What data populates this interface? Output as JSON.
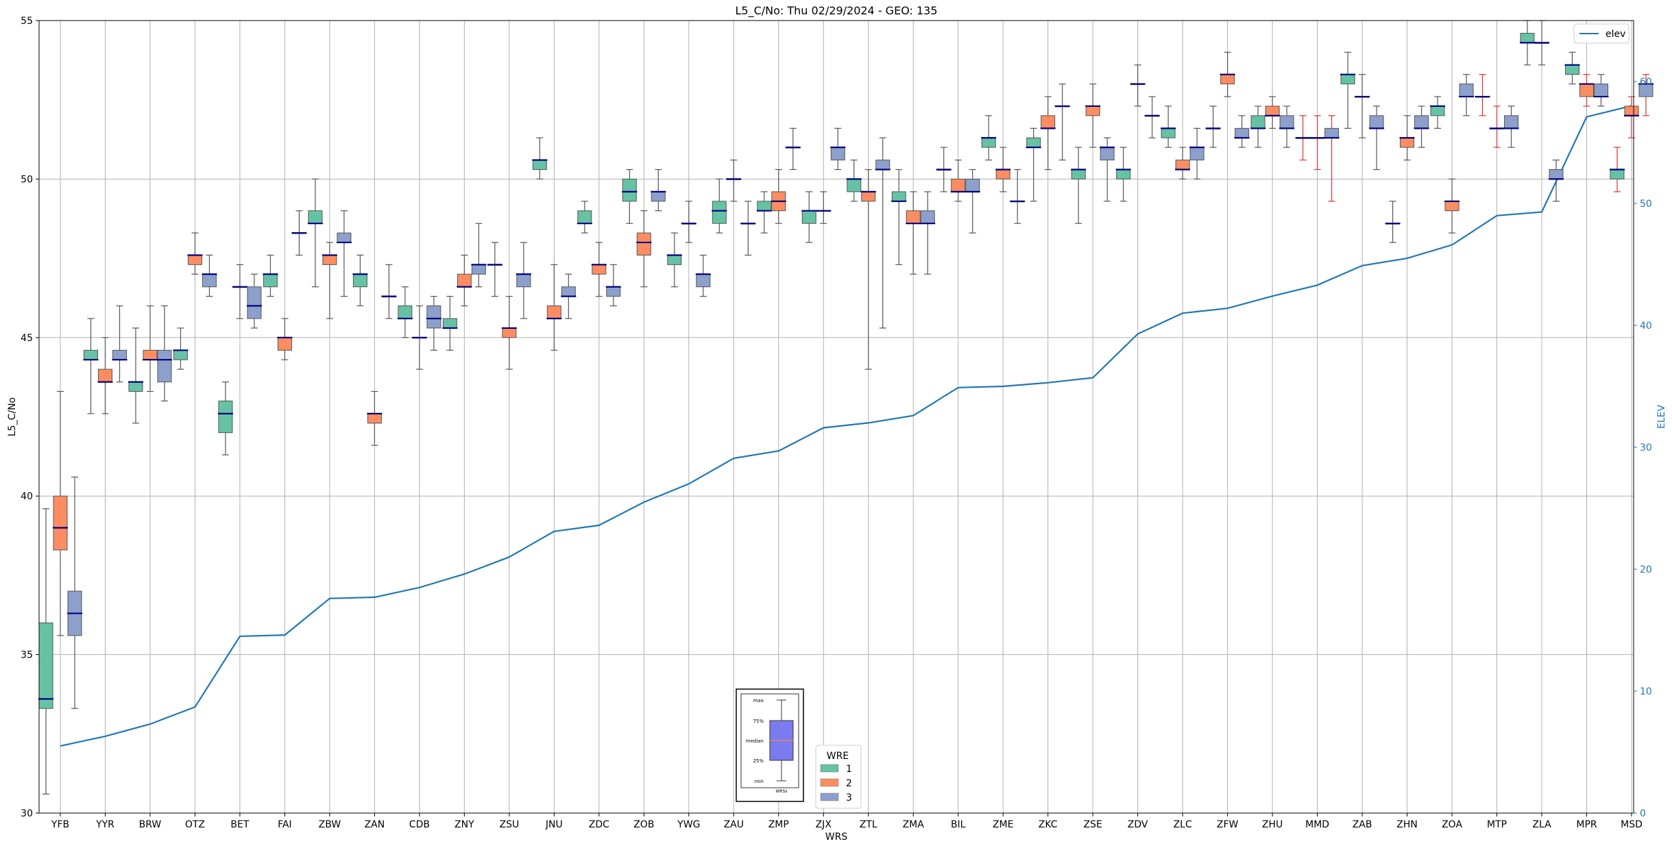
{
  "chart_data": {
    "type": "box",
    "title": "L5_C/No: Thu 02/29/2024 - GEO: 135",
    "xlabel": "WRS",
    "ylabel": "L5_C/No",
    "y2label": "ELEV",
    "ylim": [
      30,
      55
    ],
    "y2lim": [
      0,
      65
    ],
    "yticks": [
      30,
      35,
      40,
      45,
      50,
      55
    ],
    "y2ticks": [
      0,
      10,
      20,
      30,
      40,
      50,
      60
    ],
    "grid": true,
    "categories": [
      "YFB",
      "YYR",
      "BRW",
      "OTZ",
      "BET",
      "FAI",
      "ZBW",
      "ZAN",
      "CDB",
      "ZNY",
      "ZSU",
      "JNU",
      "ZDC",
      "ZOB",
      "YWG",
      "ZAU",
      "ZMP",
      "ZJX",
      "ZTL",
      "ZMA",
      "BIL",
      "ZME",
      "ZKC",
      "ZSE",
      "ZDV",
      "ZLC",
      "ZFW",
      "ZHU",
      "MMD",
      "ZAB",
      "ZHN",
      "ZOA",
      "MTP",
      "ZLA",
      "MPR",
      "MSD"
    ],
    "wre_colors": {
      "1": "#66c2a5",
      "2": "#fc8d62",
      "3": "#8da0cb"
    },
    "boxes": [
      {
        "cat": "YFB",
        "wre": 1,
        "min": 30.6,
        "q1": 33.3,
        "med": 33.6,
        "q3": 36.0,
        "max": 39.6
      },
      {
        "cat": "YFB",
        "wre": 2,
        "min": 35.6,
        "q1": 38.3,
        "med": 39.0,
        "q3": 40.0,
        "max": 43.3
      },
      {
        "cat": "YFB",
        "wre": 3,
        "min": 33.3,
        "q1": 35.6,
        "med": 36.3,
        "q3": 37.0,
        "max": 40.6
      },
      {
        "cat": "YYR",
        "wre": 1,
        "min": 42.6,
        "q1": 44.3,
        "med": 44.3,
        "q3": 44.6,
        "max": 45.6
      },
      {
        "cat": "YYR",
        "wre": 2,
        "min": 42.6,
        "q1": 43.6,
        "med": 43.6,
        "q3": 44.0,
        "max": 45.0
      },
      {
        "cat": "YYR",
        "wre": 3,
        "min": 43.6,
        "q1": 44.3,
        "med": 44.3,
        "q3": 44.6,
        "max": 46.0
      },
      {
        "cat": "BRW",
        "wre": 1,
        "min": 42.3,
        "q1": 43.3,
        "med": 43.6,
        "q3": 43.6,
        "max": 45.3
      },
      {
        "cat": "BRW",
        "wre": 2,
        "min": 43.3,
        "q1": 44.3,
        "med": 44.3,
        "q3": 44.6,
        "max": 46.0
      },
      {
        "cat": "BRW",
        "wre": 3,
        "min": 43.0,
        "q1": 43.6,
        "med": 44.3,
        "q3": 44.6,
        "max": 46.0
      },
      {
        "cat": "OTZ",
        "wre": 1,
        "min": 44.0,
        "q1": 44.3,
        "med": 44.6,
        "q3": 44.6,
        "max": 45.3
      },
      {
        "cat": "OTZ",
        "wre": 2,
        "min": 47.0,
        "q1": 47.3,
        "med": 47.6,
        "q3": 47.6,
        "max": 48.3
      },
      {
        "cat": "OTZ",
        "wre": 3,
        "min": 46.3,
        "q1": 46.6,
        "med": 47.0,
        "q3": 47.0,
        "max": 47.6
      },
      {
        "cat": "BET",
        "wre": 1,
        "min": 41.3,
        "q1": 42.0,
        "med": 42.6,
        "q3": 43.0,
        "max": 43.6
      },
      {
        "cat": "BET",
        "wre": 2,
        "min": 45.6,
        "q1": 46.6,
        "med": 46.6,
        "q3": 46.6,
        "max": 47.3
      },
      {
        "cat": "BET",
        "wre": 3,
        "min": 45.3,
        "q1": 45.6,
        "med": 46.0,
        "q3": 46.6,
        "max": 47.0
      },
      {
        "cat": "FAI",
        "wre": 1,
        "min": 46.3,
        "q1": 46.6,
        "med": 47.0,
        "q3": 47.0,
        "max": 47.6
      },
      {
        "cat": "FAI",
        "wre": 2,
        "min": 44.3,
        "q1": 44.6,
        "med": 45.0,
        "q3": 45.0,
        "max": 45.6
      },
      {
        "cat": "FAI",
        "wre": 3,
        "min": 47.6,
        "q1": 48.3,
        "med": 48.3,
        "q3": 48.3,
        "max": 49.0
      },
      {
        "cat": "ZBW",
        "wre": 1,
        "min": 46.6,
        "q1": 48.6,
        "med": 48.6,
        "q3": 49.0,
        "max": 50.0
      },
      {
        "cat": "ZBW",
        "wre": 2,
        "min": 45.6,
        "q1": 47.3,
        "med": 47.6,
        "q3": 47.6,
        "max": 48.0
      },
      {
        "cat": "ZBW",
        "wre": 3,
        "min": 46.3,
        "q1": 48.0,
        "med": 48.0,
        "q3": 48.3,
        "max": 49.0
      },
      {
        "cat": "ZAN",
        "wre": 1,
        "min": 46.0,
        "q1": 46.6,
        "med": 47.0,
        "q3": 47.0,
        "max": 47.6
      },
      {
        "cat": "ZAN",
        "wre": 2,
        "min": 41.6,
        "q1": 42.3,
        "med": 42.6,
        "q3": 42.6,
        "max": 43.3
      },
      {
        "cat": "ZAN",
        "wre": 3,
        "min": 45.6,
        "q1": 46.3,
        "med": 46.3,
        "q3": 46.3,
        "max": 47.3
      },
      {
        "cat": "CDB",
        "wre": 1,
        "min": 45.0,
        "q1": 45.6,
        "med": 45.6,
        "q3": 46.0,
        "max": 46.6
      },
      {
        "cat": "CDB",
        "wre": 2,
        "min": 44.0,
        "q1": 45.0,
        "med": 45.0,
        "q3": 45.0,
        "max": 46.0
      },
      {
        "cat": "CDB",
        "wre": 3,
        "min": 44.6,
        "q1": 45.3,
        "med": 45.6,
        "q3": 46.0,
        "max": 46.3
      },
      {
        "cat": "ZNY",
        "wre": 1,
        "min": 44.6,
        "q1": 45.3,
        "med": 45.3,
        "q3": 45.6,
        "max": 46.3
      },
      {
        "cat": "ZNY",
        "wre": 2,
        "min": 46.0,
        "q1": 46.6,
        "med": 46.6,
        "q3": 47.0,
        "max": 47.6
      },
      {
        "cat": "ZNY",
        "wre": 3,
        "min": 46.6,
        "q1": 47.0,
        "med": 47.3,
        "q3": 47.3,
        "max": 48.6
      },
      {
        "cat": "ZSU",
        "wre": 1,
        "min": 46.3,
        "q1": 47.3,
        "med": 47.3,
        "q3": 47.3,
        "max": 48.0
      },
      {
        "cat": "ZSU",
        "wre": 2,
        "min": 44.0,
        "q1": 45.0,
        "med": 45.3,
        "q3": 45.3,
        "max": 46.3
      },
      {
        "cat": "ZSU",
        "wre": 3,
        "min": 45.6,
        "q1": 46.6,
        "med": 47.0,
        "q3": 47.0,
        "max": 48.0
      },
      {
        "cat": "JNU",
        "wre": 1,
        "min": 50.0,
        "q1": 50.3,
        "med": 50.6,
        "q3": 50.6,
        "max": 51.3
      },
      {
        "cat": "JNU",
        "wre": 2,
        "min": 44.6,
        "q1": 45.6,
        "med": 45.6,
        "q3": 46.0,
        "max": 47.3
      },
      {
        "cat": "JNU",
        "wre": 3,
        "min": 45.6,
        "q1": 46.3,
        "med": 46.3,
        "q3": 46.6,
        "max": 47.0
      },
      {
        "cat": "ZDC",
        "wre": 1,
        "min": 48.3,
        "q1": 48.6,
        "med": 48.6,
        "q3": 49.0,
        "max": 49.3
      },
      {
        "cat": "ZDC",
        "wre": 2,
        "min": 46.3,
        "q1": 47.0,
        "med": 47.3,
        "q3": 47.3,
        "max": 48.0
      },
      {
        "cat": "ZDC",
        "wre": 3,
        "min": 46.0,
        "q1": 46.3,
        "med": 46.6,
        "q3": 46.6,
        "max": 47.3
      },
      {
        "cat": "ZOB",
        "wre": 1,
        "min": 48.6,
        "q1": 49.3,
        "med": 49.6,
        "q3": 50.0,
        "max": 50.3
      },
      {
        "cat": "ZOB",
        "wre": 2,
        "min": 46.6,
        "q1": 47.6,
        "med": 48.0,
        "q3": 48.3,
        "max": 49.0
      },
      {
        "cat": "ZOB",
        "wre": 3,
        "min": 49.0,
        "q1": 49.3,
        "med": 49.6,
        "q3": 49.6,
        "max": 50.3
      },
      {
        "cat": "YWG",
        "wre": 1,
        "min": 46.6,
        "q1": 47.3,
        "med": 47.6,
        "q3": 47.6,
        "max": 48.3
      },
      {
        "cat": "YWG",
        "wre": 2,
        "min": 48.0,
        "q1": 48.6,
        "med": 48.6,
        "q3": 48.6,
        "max": 49.3
      },
      {
        "cat": "YWG",
        "wre": 3,
        "min": 46.3,
        "q1": 46.6,
        "med": 47.0,
        "q3": 47.0,
        "max": 47.6
      },
      {
        "cat": "ZAU",
        "wre": 1,
        "min": 48.3,
        "q1": 48.6,
        "med": 49.0,
        "q3": 49.3,
        "max": 50.0
      },
      {
        "cat": "ZAU",
        "wre": 2,
        "min": 49.3,
        "q1": 50.0,
        "med": 50.0,
        "q3": 50.0,
        "max": 50.6
      },
      {
        "cat": "ZAU",
        "wre": 3,
        "min": 47.6,
        "q1": 48.6,
        "med": 48.6,
        "q3": 48.6,
        "max": 49.3
      },
      {
        "cat": "ZMP",
        "wre": 1,
        "min": 48.3,
        "q1": 49.0,
        "med": 49.0,
        "q3": 49.3,
        "max": 49.6
      },
      {
        "cat": "ZMP",
        "wre": 2,
        "min": 48.6,
        "q1": 49.0,
        "med": 49.3,
        "q3": 49.6,
        "max": 50.3
      },
      {
        "cat": "ZMP",
        "wre": 3,
        "min": 50.3,
        "q1": 51.0,
        "med": 51.0,
        "q3": 51.0,
        "max": 51.6
      },
      {
        "cat": "ZJX",
        "wre": 1,
        "min": 48.0,
        "q1": 48.6,
        "med": 49.0,
        "q3": 49.0,
        "max": 49.6
      },
      {
        "cat": "ZJX",
        "wre": 2,
        "min": 48.6,
        "q1": 49.0,
        "med": 49.0,
        "q3": 49.0,
        "max": 49.6
      },
      {
        "cat": "ZJX",
        "wre": 3,
        "min": 50.3,
        "q1": 50.6,
        "med": 51.0,
        "q3": 51.0,
        "max": 51.6
      },
      {
        "cat": "ZTL",
        "wre": 1,
        "min": 49.3,
        "q1": 49.6,
        "med": 50.0,
        "q3": 50.0,
        "max": 50.6
      },
      {
        "cat": "ZTL",
        "wre": 2,
        "min": 44.0,
        "q1": 49.3,
        "med": 49.6,
        "q3": 49.6,
        "max": 50.3
      },
      {
        "cat": "ZTL",
        "wre": 3,
        "min": 45.3,
        "q1": 50.3,
        "med": 50.3,
        "q3": 50.6,
        "max": 51.3
      },
      {
        "cat": "ZMA",
        "wre": 1,
        "min": 47.3,
        "q1": 49.3,
        "med": 49.3,
        "q3": 49.6,
        "max": 50.3
      },
      {
        "cat": "ZMA",
        "wre": 2,
        "min": 47.0,
        "q1": 48.6,
        "med": 48.6,
        "q3": 49.0,
        "max": 49.6
      },
      {
        "cat": "ZMA",
        "wre": 3,
        "min": 47.0,
        "q1": 48.6,
        "med": 48.6,
        "q3": 49.0,
        "max": 49.6
      },
      {
        "cat": "BIL",
        "wre": 1,
        "min": 49.6,
        "q1": 50.3,
        "med": 50.3,
        "q3": 50.3,
        "max": 51.0
      },
      {
        "cat": "BIL",
        "wre": 2,
        "min": 49.3,
        "q1": 49.6,
        "med": 49.6,
        "q3": 50.0,
        "max": 50.6
      },
      {
        "cat": "BIL",
        "wre": 3,
        "min": 48.3,
        "q1": 49.6,
        "med": 49.6,
        "q3": 50.0,
        "max": 50.3
      },
      {
        "cat": "ZME",
        "wre": 1,
        "min": 50.6,
        "q1": 51.0,
        "med": 51.3,
        "q3": 51.3,
        "max": 52.0
      },
      {
        "cat": "ZME",
        "wre": 2,
        "min": 49.6,
        "q1": 50.0,
        "med": 50.3,
        "q3": 50.3,
        "max": 51.0
      },
      {
        "cat": "ZME",
        "wre": 3,
        "min": 48.6,
        "q1": 49.3,
        "med": 49.3,
        "q3": 49.3,
        "max": 50.3
      },
      {
        "cat": "ZKC",
        "wre": 1,
        "min": 49.3,
        "q1": 51.0,
        "med": 51.0,
        "q3": 51.3,
        "max": 51.6
      },
      {
        "cat": "ZKC",
        "wre": 2,
        "min": 50.3,
        "q1": 51.6,
        "med": 51.6,
        "q3": 52.0,
        "max": 52.6
      },
      {
        "cat": "ZKC",
        "wre": 3,
        "min": 50.6,
        "q1": 52.3,
        "med": 52.3,
        "q3": 52.3,
        "max": 53.0
      },
      {
        "cat": "ZSE",
        "wre": 1,
        "min": 48.6,
        "q1": 50.0,
        "med": 50.3,
        "q3": 50.3,
        "max": 51.0
      },
      {
        "cat": "ZSE",
        "wre": 2,
        "min": 51.0,
        "q1": 52.0,
        "med": 52.3,
        "q3": 52.3,
        "max": 53.0
      },
      {
        "cat": "ZSE",
        "wre": 3,
        "min": 49.3,
        "q1": 50.6,
        "med": 51.0,
        "q3": 51.0,
        "max": 51.3
      },
      {
        "cat": "ZDV",
        "wre": 1,
        "min": 49.3,
        "q1": 50.0,
        "med": 50.3,
        "q3": 50.3,
        "max": 51.0
      },
      {
        "cat": "ZDV",
        "wre": 2,
        "min": 52.3,
        "q1": 53.0,
        "med": 53.0,
        "q3": 53.0,
        "max": 53.6
      },
      {
        "cat": "ZDV",
        "wre": 3,
        "min": 51.3,
        "q1": 52.0,
        "med": 52.0,
        "q3": 52.0,
        "max": 52.6
      },
      {
        "cat": "ZLC",
        "wre": 1,
        "min": 51.0,
        "q1": 51.3,
        "med": 51.6,
        "q3": 51.6,
        "max": 52.3
      },
      {
        "cat": "ZLC",
        "wre": 2,
        "min": 50.0,
        "q1": 50.3,
        "med": 50.3,
        "q3": 50.6,
        "max": 51.0
      },
      {
        "cat": "ZLC",
        "wre": 3,
        "min": 50.0,
        "q1": 50.6,
        "med": 51.0,
        "q3": 51.0,
        "max": 51.6
      },
      {
        "cat": "ZFW",
        "wre": 1,
        "min": 51.0,
        "q1": 51.6,
        "med": 51.6,
        "q3": 51.6,
        "max": 52.3
      },
      {
        "cat": "ZFW",
        "wre": 2,
        "min": 52.6,
        "q1": 53.0,
        "med": 53.3,
        "q3": 53.3,
        "max": 54.0
      },
      {
        "cat": "ZFW",
        "wre": 3,
        "min": 51.0,
        "q1": 51.3,
        "med": 51.3,
        "q3": 51.6,
        "max": 52.0
      },
      {
        "cat": "ZHU",
        "wre": 1,
        "min": 51.0,
        "q1": 51.6,
        "med": 51.6,
        "q3": 52.0,
        "max": 52.3
      },
      {
        "cat": "ZHU",
        "wre": 2,
        "min": 51.6,
        "q1": 52.0,
        "med": 52.0,
        "q3": 52.3,
        "max": 52.6
      },
      {
        "cat": "ZHU",
        "wre": 3,
        "min": 51.0,
        "q1": 51.6,
        "med": 51.6,
        "q3": 52.0,
        "max": 52.3
      },
      {
        "cat": "MMD",
        "wre": 1,
        "min": 50.6,
        "q1": 51.3,
        "med": 51.3,
        "q3": 51.3,
        "max": 52.0,
        "red": true
      },
      {
        "cat": "MMD",
        "wre": 2,
        "min": 50.3,
        "q1": 51.3,
        "med": 51.3,
        "q3": 51.3,
        "max": 52.0,
        "red": true
      },
      {
        "cat": "MMD",
        "wre": 3,
        "min": 49.3,
        "q1": 51.3,
        "med": 51.3,
        "q3": 51.6,
        "max": 52.0,
        "red": true
      },
      {
        "cat": "ZAB",
        "wre": 1,
        "min": 51.6,
        "q1": 53.0,
        "med": 53.3,
        "q3": 53.3,
        "max": 54.0
      },
      {
        "cat": "ZAB",
        "wre": 2,
        "min": 51.3,
        "q1": 52.6,
        "med": 52.6,
        "q3": 52.6,
        "max": 53.3
      },
      {
        "cat": "ZAB",
        "wre": 3,
        "min": 50.3,
        "q1": 51.6,
        "med": 51.6,
        "q3": 52.0,
        "max": 52.3
      },
      {
        "cat": "ZHN",
        "wre": 1,
        "min": 48.0,
        "q1": 48.6,
        "med": 48.6,
        "q3": 48.6,
        "max": 49.3
      },
      {
        "cat": "ZHN",
        "wre": 2,
        "min": 50.6,
        "q1": 51.0,
        "med": 51.3,
        "q3": 51.3,
        "max": 52.0
      },
      {
        "cat": "ZHN",
        "wre": 3,
        "min": 51.0,
        "q1": 51.6,
        "med": 51.6,
        "q3": 52.0,
        "max": 52.3
      },
      {
        "cat": "ZOA",
        "wre": 1,
        "min": 51.6,
        "q1": 52.0,
        "med": 52.3,
        "q3": 52.3,
        "max": 52.6
      },
      {
        "cat": "ZOA",
        "wre": 2,
        "min": 48.3,
        "q1": 49.0,
        "med": 49.3,
        "q3": 49.3,
        "max": 50.0
      },
      {
        "cat": "ZOA",
        "wre": 3,
        "min": 52.0,
        "q1": 52.6,
        "med": 52.6,
        "q3": 53.0,
        "max": 53.3
      },
      {
        "cat": "MTP",
        "wre": 1,
        "min": 52.0,
        "q1": 52.6,
        "med": 52.6,
        "q3": 52.6,
        "max": 53.3,
        "red": true
      },
      {
        "cat": "MTP",
        "wre": 2,
        "min": 51.0,
        "q1": 51.6,
        "med": 51.6,
        "q3": 51.6,
        "max": 52.3,
        "red": true
      },
      {
        "cat": "MTP",
        "wre": 3,
        "min": 51.0,
        "q1": 51.6,
        "med": 51.6,
        "q3": 52.0,
        "max": 52.3
      },
      {
        "cat": "ZLA",
        "wre": 1,
        "min": 53.6,
        "q1": 54.3,
        "med": 54.3,
        "q3": 54.6,
        "max": 55.0
      },
      {
        "cat": "ZLA",
        "wre": 2,
        "min": 53.6,
        "q1": 54.3,
        "med": 54.3,
        "q3": 54.3,
        "max": 55.0
      },
      {
        "cat": "ZLA",
        "wre": 3,
        "min": 49.3,
        "q1": 50.0,
        "med": 50.0,
        "q3": 50.3,
        "max": 50.6
      },
      {
        "cat": "MPR",
        "wre": 1,
        "min": 53.0,
        "q1": 53.3,
        "med": 53.6,
        "q3": 53.6,
        "max": 54.0
      },
      {
        "cat": "MPR",
        "wre": 2,
        "min": 52.3,
        "q1": 52.6,
        "med": 53.0,
        "q3": 53.0,
        "max": 53.3,
        "red": true
      },
      {
        "cat": "MPR",
        "wre": 3,
        "min": 52.3,
        "q1": 52.6,
        "med": 52.6,
        "q3": 53.0,
        "max": 53.3
      },
      {
        "cat": "MSD",
        "wre": 1,
        "min": 49.6,
        "q1": 50.0,
        "med": 50.3,
        "q3": 50.3,
        "max": 51.0,
        "red": true
      },
      {
        "cat": "MSD",
        "wre": 2,
        "min": 51.3,
        "q1": 52.0,
        "med": 52.0,
        "q3": 52.3,
        "max": 52.6,
        "red": true
      },
      {
        "cat": "MSD",
        "wre": 3,
        "min": 52.0,
        "q1": 52.6,
        "med": 53.0,
        "q3": 53.0,
        "max": 53.3,
        "red": true
      }
    ],
    "series": [
      {
        "name": "elev",
        "axis": "right",
        "color": "#1f77b4",
        "values": [
          5.5,
          6.3,
          7.3,
          8.7,
          14.5,
          14.6,
          17.6,
          17.7,
          18.5,
          19.6,
          21.0,
          23.1,
          23.6,
          25.5,
          27.0,
          29.1,
          29.7,
          31.6,
          32.0,
          32.6,
          34.9,
          35.0,
          35.3,
          35.7,
          39.3,
          41.0,
          41.4,
          42.4,
          43.3,
          44.9,
          45.5,
          46.6,
          49.0,
          49.3,
          57.1,
          58.0
        ]
      }
    ],
    "legend_top_right": {
      "label": "elev"
    },
    "legend_wre": {
      "title": "WRE",
      "entries": [
        "1",
        "2",
        "3"
      ]
    },
    "inset_key": {
      "labels": [
        "max",
        "75%",
        "median",
        "25%",
        "min"
      ],
      "xlabel": "WRSs",
      "fill": "#7b7bf0",
      "median_color": "#e08a4a"
    }
  }
}
